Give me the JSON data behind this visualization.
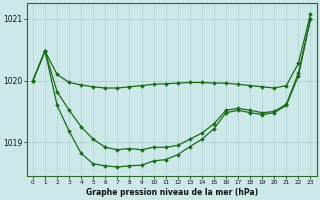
{
  "xlabel": "Graphe pression niveau de la mer (hPa)",
  "background_color": "#cce8e8",
  "grid_color": "#aad0d0",
  "line_color": "#1a6b1a",
  "hours": [
    0,
    1,
    2,
    3,
    4,
    5,
    6,
    7,
    8,
    9,
    10,
    11,
    12,
    13,
    14,
    15,
    16,
    17,
    18,
    19,
    20,
    21,
    22,
    23
  ],
  "sA": [
    1020.0,
    1020.48,
    1020.1,
    1019.97,
    1019.93,
    1019.9,
    1019.88,
    1019.88,
    1019.9,
    1019.92,
    1019.94,
    1019.95,
    1019.96,
    1019.97,
    1019.97,
    1019.96,
    1019.96,
    1019.94,
    1019.92,
    1019.9,
    1019.88,
    1019.92,
    1020.28,
    1021.08
  ],
  "sB": [
    1020.0,
    1020.48,
    1019.82,
    1019.52,
    1019.25,
    1019.05,
    1018.92,
    1018.88,
    1018.9,
    1018.88,
    1018.92,
    1018.92,
    1018.95,
    1019.05,
    1019.15,
    1019.3,
    1019.52,
    1019.55,
    1019.52,
    1019.48,
    1019.5,
    1019.62,
    1020.12,
    1021.0
  ],
  "sC": [
    1020.0,
    1020.48,
    1019.6,
    1019.18,
    1018.82,
    1018.65,
    1018.62,
    1018.6,
    1018.62,
    1018.63,
    1018.7,
    1018.72,
    1018.8,
    1018.93,
    1019.05,
    1019.22,
    1019.48,
    1019.52,
    1019.48,
    1019.45,
    1019.48,
    1019.6,
    1020.08,
    1021.0
  ],
  "ylim_min": 1018.45,
  "ylim_max": 1021.25,
  "yticks": [
    1019,
    1020,
    1021
  ],
  "xlim_min": -0.5,
  "xlim_max": 23.5
}
